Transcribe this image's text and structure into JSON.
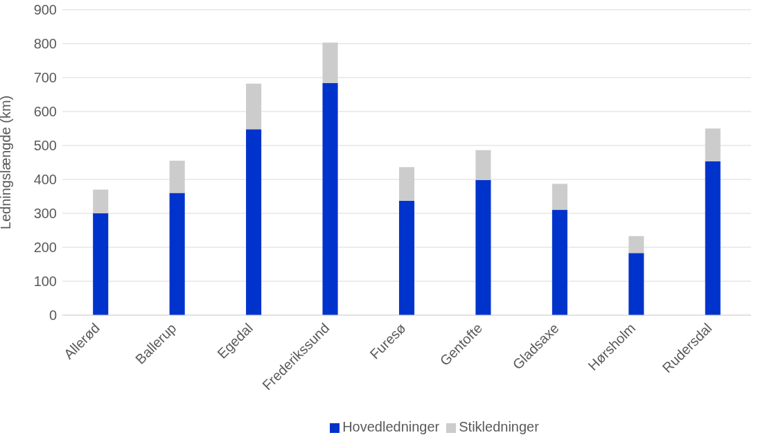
{
  "chart_data": {
    "type": "bar",
    "stacked": true,
    "ylabel": "Ledningslængde (km)",
    "categories": [
      "Allerød",
      "Ballerup",
      "Egedal",
      "Frederikssund",
      "Furesø",
      "Gentofte",
      "Gladsaxe",
      "Hørsholm",
      "Rudersdal"
    ],
    "series": [
      {
        "name": "Hovedledninger",
        "color": "#0033cc",
        "values": [
          300,
          360,
          548,
          684,
          337,
          398,
          310,
          183,
          453
        ]
      },
      {
        "name": "Stikledninger",
        "color": "#cccccc",
        "values": [
          70,
          95,
          134,
          119,
          99,
          88,
          77,
          50,
          97
        ]
      }
    ],
    "ylim": [
      0,
      900
    ],
    "yticks": [
      0,
      100,
      200,
      300,
      400,
      500,
      600,
      700,
      800,
      900
    ],
    "grid": "y",
    "legend": "bottom"
  }
}
